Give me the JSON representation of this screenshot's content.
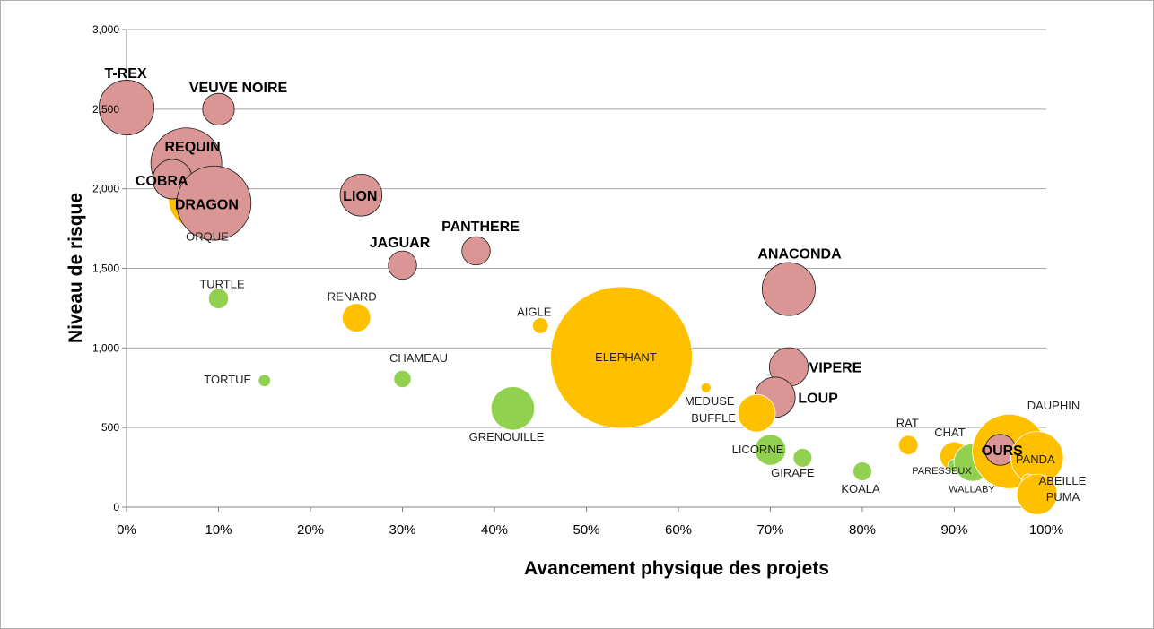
{
  "chart_data": {
    "type": "scatter",
    "subtype": "bubble",
    "title": "",
    "xlabel": "Avancement physique des projets",
    "ylabel": "Niveau de risque",
    "xlim": [
      0,
      1
    ],
    "ylim": [
      0,
      3000
    ],
    "x_ticks": [
      "0%",
      "10%",
      "20%",
      "30%",
      "40%",
      "50%",
      "60%",
      "70%",
      "80%",
      "90%",
      "100%"
    ],
    "y_ticks": [
      "0",
      "500",
      "1,000",
      "1,500",
      "2,000",
      "2,500",
      "3,000"
    ],
    "grid": "horizontal",
    "legend": "none",
    "colors": {
      "red": "#d99694",
      "orange": "#ffc000",
      "green": "#92d050"
    },
    "points": [
      {
        "label": "ORQUE",
        "x": 0.08,
        "y": 1940,
        "size": 1600,
        "color": "orange",
        "bold": false
      },
      {
        "label": "REQUIN",
        "x": 0.065,
        "y": 2160,
        "size": 2000,
        "color": "red",
        "bold": true
      },
      {
        "label": "T-REX",
        "x": 0.0,
        "y": 2510,
        "size": 1200,
        "color": "red",
        "bold": true
      },
      {
        "label": "VEUVE NOIRE",
        "x": 0.1,
        "y": 2500,
        "size": 400,
        "color": "red",
        "bold": true
      },
      {
        "label": "COBRA",
        "x": 0.05,
        "y": 2060,
        "size": 620,
        "color": "red",
        "bold": true
      },
      {
        "label": "DRAGON",
        "x": 0.095,
        "y": 1910,
        "size": 2200,
        "color": "red",
        "bold": true
      },
      {
        "label": "LION",
        "x": 0.255,
        "y": 1960,
        "size": 700,
        "color": "red",
        "bold": true
      },
      {
        "label": "JAGUAR",
        "x": 0.3,
        "y": 1520,
        "size": 320,
        "color": "red",
        "bold": true
      },
      {
        "label": "PANTHERE",
        "x": 0.38,
        "y": 1610,
        "size": 320,
        "color": "red",
        "bold": true
      },
      {
        "label": "ANACONDA",
        "x": 0.72,
        "y": 1370,
        "size": 1120,
        "color": "red",
        "bold": true
      },
      {
        "label": "TURTLE",
        "x": 0.1,
        "y": 1310,
        "size": 160,
        "color": "green",
        "bold": false
      },
      {
        "label": "RENARD",
        "x": 0.25,
        "y": 1190,
        "size": 320,
        "color": "orange",
        "bold": false
      },
      {
        "label": "AIGLE",
        "x": 0.45,
        "y": 1140,
        "size": 100,
        "color": "orange",
        "bold": false
      },
      {
        "label": "ELEPHANT",
        "x": 0.538,
        "y": 940,
        "size": 8000,
        "color": "orange",
        "bold": false
      },
      {
        "label": "TORTUE",
        "x": 0.15,
        "y": 795,
        "size": 60,
        "color": "green",
        "bold": false
      },
      {
        "label": "CHAMEAU",
        "x": 0.3,
        "y": 805,
        "size": 120,
        "color": "green",
        "bold": false
      },
      {
        "label": "GRENOUILLE",
        "x": 0.42,
        "y": 620,
        "size": 750,
        "color": "green",
        "bold": false
      },
      {
        "label": "VIPERE",
        "x": 0.72,
        "y": 880,
        "size": 600,
        "color": "red",
        "bold": true
      },
      {
        "label": "LOUP",
        "x": 0.705,
        "y": 690,
        "size": 650,
        "color": "red",
        "bold": true
      },
      {
        "label": "MEDUSE",
        "x": 0.63,
        "y": 750,
        "size": 40,
        "color": "orange",
        "bold": false
      },
      {
        "label": "BUFFLE",
        "x": 0.685,
        "y": 590,
        "size": 560,
        "color": "orange",
        "bold": false
      },
      {
        "label": "LICORNE",
        "x": 0.7,
        "y": 360,
        "size": 380,
        "color": "green",
        "bold": false
      },
      {
        "label": "GIRAFE",
        "x": 0.735,
        "y": 310,
        "size": 140,
        "color": "green",
        "bold": false
      },
      {
        "label": "KOALA",
        "x": 0.8,
        "y": 225,
        "size": 140,
        "color": "green",
        "bold": false
      },
      {
        "label": "RAT",
        "x": 0.85,
        "y": 390,
        "size": 150,
        "color": "orange",
        "bold": false
      },
      {
        "label": "CHAT",
        "x": 0.9,
        "y": 320,
        "size": 330,
        "color": "orange",
        "bold": false
      },
      {
        "label": "PARESSEUX",
        "x": 0.9,
        "y": 260,
        "size": 70,
        "color": "green",
        "bold": false
      },
      {
        "label": "WALLABY",
        "x": 0.92,
        "y": 280,
        "size": 560,
        "color": "green",
        "bold": false
      },
      {
        "label": "DAUPHIN",
        "x": 0.96,
        "y": 350,
        "size": 2200,
        "color": "orange",
        "bold": false
      },
      {
        "label": "OURS",
        "x": 0.95,
        "y": 360,
        "size": 380,
        "color": "red",
        "bold": true
      },
      {
        "label": "PANDA",
        "x": 0.99,
        "y": 310,
        "size": 1100,
        "color": "orange",
        "bold": false
      },
      {
        "label": "ABEILLE",
        "x": 0.98,
        "y": 170,
        "size": 60,
        "color": "orange",
        "bold": false
      },
      {
        "label": "PUMA",
        "x": 0.99,
        "y": 80,
        "size": 650,
        "color": "orange",
        "bold": false
      }
    ]
  }
}
